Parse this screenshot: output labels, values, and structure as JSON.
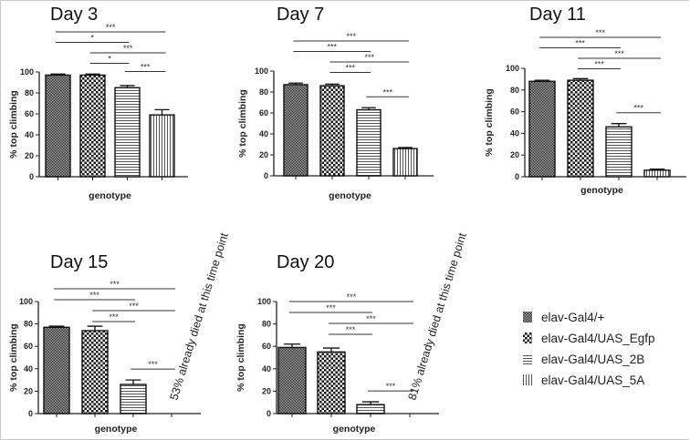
{
  "legend": [
    {
      "label": "elav-Gal4/+",
      "pattern": "fine-check"
    },
    {
      "label": "elav-Gal4/UAS_Egfp",
      "pattern": "coarse-check"
    },
    {
      "label": "elav-Gal4/UAS_2B",
      "pattern": "horizontal-lines"
    },
    {
      "label": "elav-Gal4/UAS_5A",
      "pattern": "vertical-lines"
    }
  ],
  "chart_data": [
    {
      "type": "bar",
      "title": "Day 3",
      "xlabel": "genotype",
      "ylabel": "% top climbing",
      "ylim": [
        0,
        100
      ],
      "yticks": [
        "0",
        "20",
        "40",
        "60",
        "80",
        "100"
      ],
      "categories": [
        "elav-Gal4/+",
        "elav-Gal4/UAS_Egfp",
        "elav-Gal4/UAS_2B",
        "elav-Gal4/UAS_5A"
      ],
      "values": [
        97,
        97,
        85,
        59
      ],
      "errors": [
        1,
        1,
        2,
        5
      ],
      "significance": [
        {
          "from": 0,
          "to": 3,
          "label": "***"
        },
        {
          "from": 0,
          "to": 2,
          "label": "*"
        },
        {
          "from": 1,
          "to": 3,
          "label": "***"
        },
        {
          "from": 1,
          "to": 2,
          "label": "*"
        },
        {
          "from": 2,
          "to": 3,
          "label": "***"
        }
      ],
      "note": ""
    },
    {
      "type": "bar",
      "title": "Day 7",
      "xlabel": "genotype",
      "ylabel": "% top climbing",
      "ylim": [
        0,
        100
      ],
      "yticks": [
        "0",
        "20",
        "40",
        "60",
        "80",
        "100"
      ],
      "categories": [
        "elav-Gal4/+",
        "elav-Gal4/UAS_Egfp",
        "elav-Gal4/UAS_2B",
        "elav-Gal4/UAS_5A"
      ],
      "values": [
        87,
        86,
        63,
        26
      ],
      "errors": [
        1.5,
        1.5,
        2,
        1
      ],
      "significance": [
        {
          "from": 0,
          "to": 3,
          "label": "***"
        },
        {
          "from": 0,
          "to": 2,
          "label": "***"
        },
        {
          "from": 1,
          "to": 3,
          "label": "***"
        },
        {
          "from": 1,
          "to": 2,
          "label": "***"
        },
        {
          "from": 2,
          "to": 3,
          "label": "***"
        }
      ],
      "note": ""
    },
    {
      "type": "bar",
      "title": "Day 11",
      "xlabel": "genotype",
      "ylabel": "% top climbing",
      "ylim": [
        0,
        100
      ],
      "yticks": [
        "0",
        "20",
        "40",
        "60",
        "80",
        "100"
      ],
      "categories": [
        "elav-Gal4/+",
        "elav-Gal4/UAS_Egfp",
        "elav-Gal4/UAS_2B",
        "elav-Gal4/UAS_5A"
      ],
      "values": [
        88,
        89,
        46,
        6
      ],
      "errors": [
        1,
        1.5,
        3,
        1
      ],
      "significance": [
        {
          "from": 0,
          "to": 3,
          "label": "***"
        },
        {
          "from": 0,
          "to": 2,
          "label": "***"
        },
        {
          "from": 1,
          "to": 3,
          "label": "***"
        },
        {
          "from": 1,
          "to": 2,
          "label": "***"
        },
        {
          "from": 2,
          "to": 3,
          "label": "***"
        }
      ],
      "note": ""
    },
    {
      "type": "bar",
      "title": "Day 15",
      "xlabel": "genotype",
      "ylabel": "% top climbing",
      "ylim": [
        0,
        100
      ],
      "yticks": [
        "0",
        "20",
        "40",
        "60",
        "80",
        "100"
      ],
      "categories": [
        "elav-Gal4/+",
        "elav-Gal4/UAS_Egfp",
        "elav-Gal4/UAS_2B",
        "elav-Gal4/UAS_5A"
      ],
      "values": [
        77,
        74,
        26,
        null
      ],
      "errors": [
        1,
        4,
        4,
        null
      ],
      "significance": [
        {
          "from": 0,
          "to": 3,
          "label": "***"
        },
        {
          "from": 0,
          "to": 2,
          "label": "***"
        },
        {
          "from": 1,
          "to": 3,
          "label": "***"
        },
        {
          "from": 1,
          "to": 2,
          "label": "***"
        },
        {
          "from": 2,
          "to": 3,
          "label": "***"
        }
      ],
      "note": "53% already died at this time point"
    },
    {
      "type": "bar",
      "title": "Day 20",
      "xlabel": "genotype",
      "ylabel": "% top climbing",
      "ylim": [
        0,
        100
      ],
      "yticks": [
        "0",
        "20",
        "40",
        "60",
        "80",
        "100"
      ],
      "categories": [
        "elav-Gal4/+",
        "elav-Gal4/UAS_Egfp",
        "elav-Gal4/UAS_2B",
        "elav-Gal4/UAS_5A"
      ],
      "values": [
        59,
        55,
        8,
        null
      ],
      "errors": [
        3,
        3.5,
        2.5,
        null
      ],
      "significance": [
        {
          "from": 0,
          "to": 3,
          "label": "***"
        },
        {
          "from": 0,
          "to": 2,
          "label": "***"
        },
        {
          "from": 1,
          "to": 3,
          "label": "***"
        },
        {
          "from": 1,
          "to": 2,
          "label": "***"
        },
        {
          "from": 2,
          "to": 3,
          "label": "***"
        }
      ],
      "note": "81% already died at this time point"
    }
  ]
}
